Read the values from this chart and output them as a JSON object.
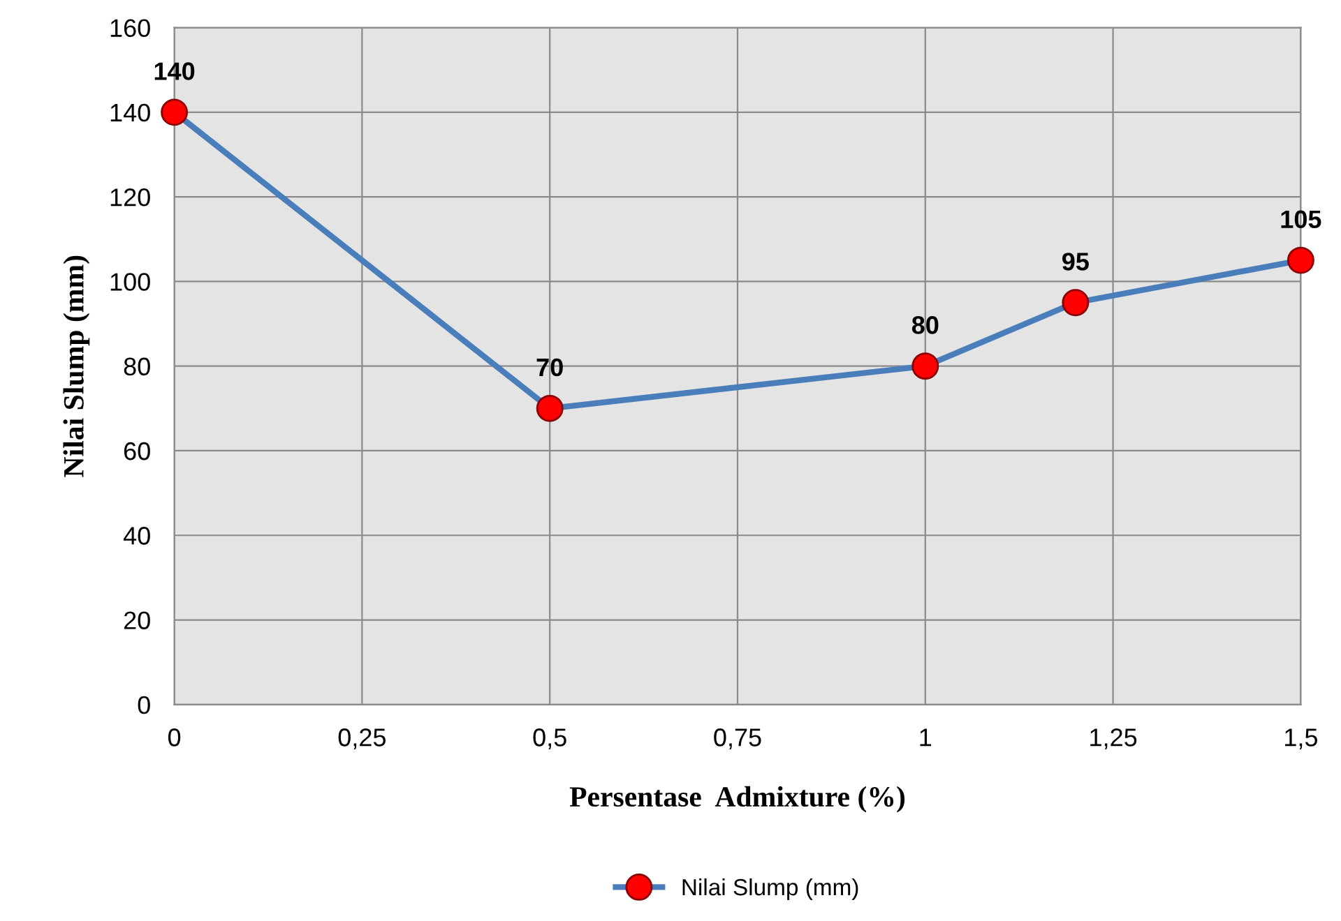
{
  "chart_data": {
    "type": "line",
    "xlabel": "Persentase  Admixture (%)",
    "ylabel": "Nilai Slump (mm)",
    "x": [
      0,
      0.5,
      1,
      1.2,
      1.5
    ],
    "series": [
      {
        "name": "Nilai Slump (mm)",
        "color": "#4a7ebb",
        "values": [
          140,
          70,
          80,
          95,
          105
        ]
      }
    ],
    "xlim": [
      0,
      1.5
    ],
    "xticks": [
      0,
      {
        "value": 0.25,
        "label": "0,25"
      },
      {
        "value": 0.5,
        "label": "0,5"
      },
      {
        "value": 0.75,
        "label": "0,75"
      },
      1,
      {
        "value": 1.25,
        "label": "1,25"
      },
      {
        "value": 1.5,
        "label": "1,5"
      }
    ],
    "ylim": [
      0,
      160
    ],
    "yticks": [
      0,
      20,
      40,
      60,
      80,
      100,
      120,
      140,
      160
    ],
    "grid": true,
    "legend": "bottom",
    "marker": "circle",
    "line_style": "solid",
    "data_labels": true
  }
}
